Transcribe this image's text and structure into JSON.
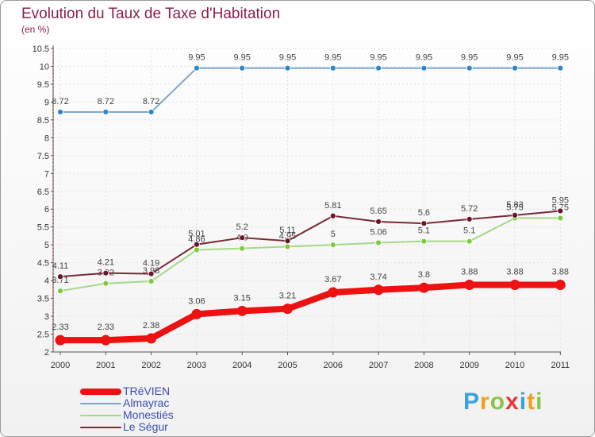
{
  "title": "Evolution du Taux de Taxe d'Habitation",
  "subtitle": "(en %)",
  "logo": {
    "text": "Proxiti",
    "letters": [
      "P",
      "r",
      "o",
      "x",
      "i",
      "t",
      "i"
    ],
    "colors": [
      "#3aa3dc",
      "#f0a020",
      "#8bc34a",
      "#e53935",
      "#3aa3dc",
      "#f0a020",
      "#8bc34a"
    ]
  },
  "chart_data": {
    "type": "line",
    "title": "Evolution du Taux de Taxe d'Habitation",
    "ylabel": "(en %)",
    "xlabel": "",
    "categories": [
      "2000",
      "2001",
      "2002",
      "2003",
      "2004",
      "2005",
      "2006",
      "2007",
      "2008",
      "2009",
      "2010",
      "2011"
    ],
    "ylim": [
      2,
      10.5
    ],
    "yticks": [
      "2",
      "2.5",
      "3",
      "3.5",
      "4",
      "4.5",
      "5",
      "5.5",
      "6",
      "6.5",
      "7",
      "7.5",
      "8",
      "8.5",
      "9",
      "9.5",
      "10",
      "10.5"
    ],
    "grid": true,
    "legend_position": "bottom-left",
    "series": [
      {
        "name": "Almayrac",
        "color": "#7aa7d1",
        "marker": "#2e86c8",
        "values": [
          8.72,
          8.72,
          8.72,
          9.95,
          9.95,
          9.95,
          9.95,
          9.95,
          9.95,
          9.95,
          9.95,
          9.95
        ],
        "labels": [
          "8.72",
          "8.72",
          "8.72",
          "9.95",
          "9.95",
          "9.95",
          "9.95",
          "9.95",
          "9.95",
          "9.95",
          "9.95",
          "9.95"
        ]
      },
      {
        "name": "Monestiés",
        "color": "#a6d88a",
        "marker": "#7ccc3a",
        "values": [
          3.71,
          3.92,
          3.98,
          4.86,
          4.9,
          4.95,
          5,
          5.06,
          5.1,
          5.1,
          5.75,
          5.75
        ],
        "labels": [
          "3.71",
          "3.92",
          "3.98",
          "4.86",
          "4.9",
          "4.95",
          "5",
          "5.06",
          "5.1",
          "5.1",
          "5.75",
          "5.75"
        ]
      },
      {
        "name": "Le Ségur",
        "color": "#7a2a3a",
        "marker": "#6b1226",
        "values": [
          4.11,
          4.21,
          4.19,
          5.01,
          5.2,
          5.11,
          5.81,
          5.65,
          5.6,
          5.72,
          5.83,
          5.95
        ],
        "labels": [
          "4.11",
          "4.21",
          "4.19",
          "5.01",
          "5.2",
          "5.11",
          "5.81",
          "5.65",
          "5.6",
          "5.72",
          "5.83",
          "5.95"
        ]
      },
      {
        "name": "TRéVIEN",
        "color": "#ee1111",
        "marker": "#ee1111",
        "values": [
          2.33,
          2.33,
          2.38,
          3.06,
          3.15,
          3.21,
          3.67,
          3.74,
          3.8,
          3.88,
          3.88,
          3.88
        ],
        "labels": [
          "2.33",
          "2.33",
          "2.38",
          "3.06",
          "3.15",
          "3.21",
          "3.67",
          "3.74",
          "3.8",
          "3.88",
          "3.88",
          "3.88"
        ]
      }
    ]
  },
  "legend": [
    {
      "label": "TRéVIEN",
      "color": "#ee1111",
      "weight": "thick"
    },
    {
      "label": "Almayrac",
      "color": "#7aa7d1",
      "weight": "thin"
    },
    {
      "label": "Monestiés",
      "color": "#a6d88a",
      "weight": "thin"
    },
    {
      "label": "Le Ségur",
      "color": "#7a2a3a",
      "weight": "thin"
    }
  ]
}
